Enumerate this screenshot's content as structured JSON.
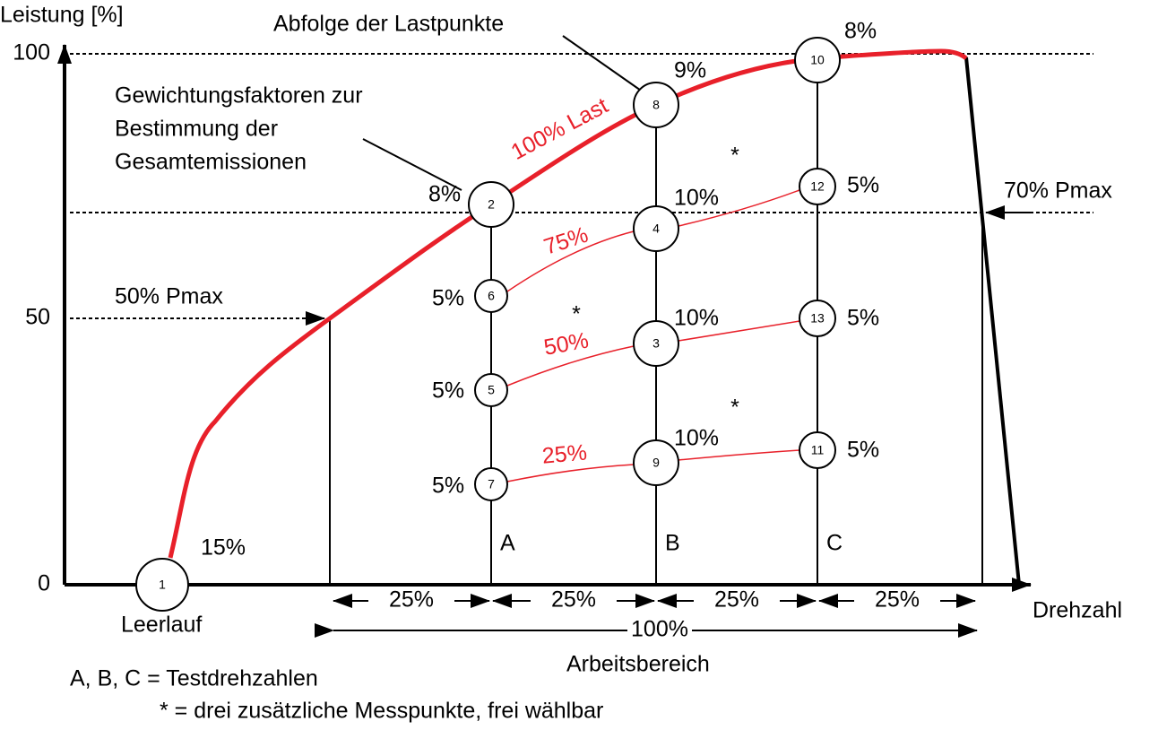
{
  "axes": {
    "y_label": "Leistung [%]",
    "x_label": "Drehzahl",
    "y_ticks": [
      "100",
      "50",
      "0"
    ]
  },
  "annotations": {
    "sequence": "Abfolge der Lastpunkte",
    "weights": [
      "Gewichtungsfaktoren zur",
      "Bestimmung der",
      "Gesamtemissionen"
    ],
    "p50": "50% Pmax",
    "p70": "70% Pmax",
    "idle": "Leerlauf"
  },
  "load_curves": [
    "100% Last",
    "75%",
    "50%",
    "25%"
  ],
  "speeds": [
    "A",
    "B",
    "C"
  ],
  "stars": [
    "*",
    "*",
    "*"
  ],
  "ranges": [
    "25%",
    "25%",
    "25%",
    "25%"
  ],
  "range_total": "100%",
  "range_name": "Arbeitsbereich",
  "nodes": [
    {
      "label": "1",
      "weight": "15%"
    },
    {
      "label": "2",
      "weight": "8%"
    },
    {
      "label": "6",
      "weight": "5%"
    },
    {
      "label": "5",
      "weight": "5%"
    },
    {
      "label": "7",
      "weight": "5%"
    },
    {
      "label": "8",
      "weight": "9%"
    },
    {
      "label": "4",
      "weight": "10%"
    },
    {
      "label": "3",
      "weight": "10%"
    },
    {
      "label": "9",
      "weight": "10%"
    },
    {
      "label": "10",
      "weight": "8%"
    },
    {
      "label": "12",
      "weight": "5%"
    },
    {
      "label": "13",
      "weight": "5%"
    },
    {
      "label": "11",
      "weight": "5%"
    }
  ],
  "legend": [
    "A, B, C = Testdrehzahlen",
    "* = drei zusätzliche Messpunkte, frei wählbar"
  ]
}
